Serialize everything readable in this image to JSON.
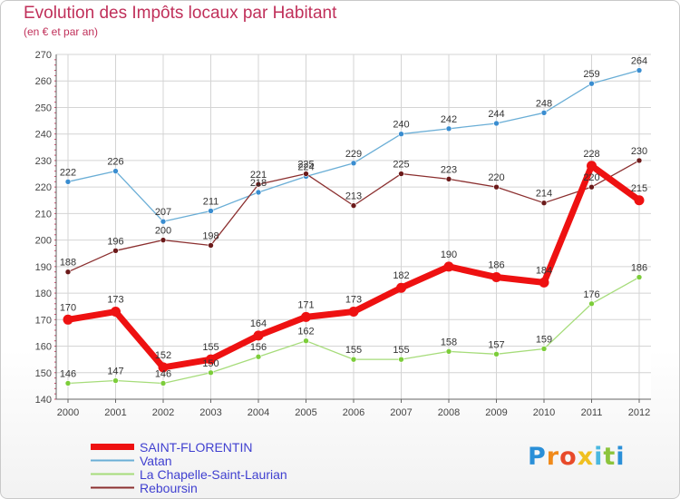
{
  "chart_data": {
    "type": "line",
    "title": "Evolution des Impôts locaux par Habitant",
    "subtitle": "(en € et par an)",
    "xlabel": "",
    "ylabel": "",
    "ylim": [
      140,
      270
    ],
    "yticks": [
      140,
      150,
      160,
      170,
      180,
      190,
      200,
      210,
      220,
      230,
      240,
      250,
      260,
      270
    ],
    "categories": [
      "2000",
      "2001",
      "2002",
      "2003",
      "2004",
      "2005",
      "2006",
      "2007",
      "2008",
      "2009",
      "2010",
      "2011",
      "2012"
    ],
    "grid": true,
    "legend_position": "bottom-left",
    "series": [
      {
        "name": "SAINT-FLORENTIN",
        "color": "#ee1111",
        "marker": "#ee1111",
        "values": [
          170,
          173,
          152,
          155,
          164,
          171,
          173,
          182,
          190,
          186,
          184,
          228,
          215
        ],
        "thick": true
      },
      {
        "name": "Vatan",
        "color": "#6aaed6",
        "marker": "#3a8dd0",
        "values": [
          222,
          226,
          207,
          211,
          218,
          224,
          229,
          240,
          242,
          244,
          248,
          259,
          264
        ],
        "thick": false
      },
      {
        "name": "La Chapelle-Saint-Laurian",
        "color": "#a6dc7a",
        "marker": "#7ccd3a",
        "values": [
          146,
          147,
          146,
          150,
          156,
          162,
          155,
          155,
          158,
          157,
          159,
          176,
          186
        ],
        "thick": false
      },
      {
        "name": "Reboursin",
        "color": "#8b2f2f",
        "marker": "#6b1a1a",
        "values": [
          188,
          196,
          200,
          198,
          221,
          225,
          213,
          225,
          223,
          220,
          214,
          220,
          230
        ],
        "thick": false
      }
    ]
  },
  "logo": {
    "letters": [
      "P",
      "r",
      "o",
      "x",
      "i",
      "t",
      "i"
    ],
    "colors": [
      "#2a8fd8",
      "#f08a1a",
      "#e84a2a",
      "#f0c020",
      "#4ab8e0",
      "#8cc43c",
      "#2a8fd8"
    ]
  }
}
